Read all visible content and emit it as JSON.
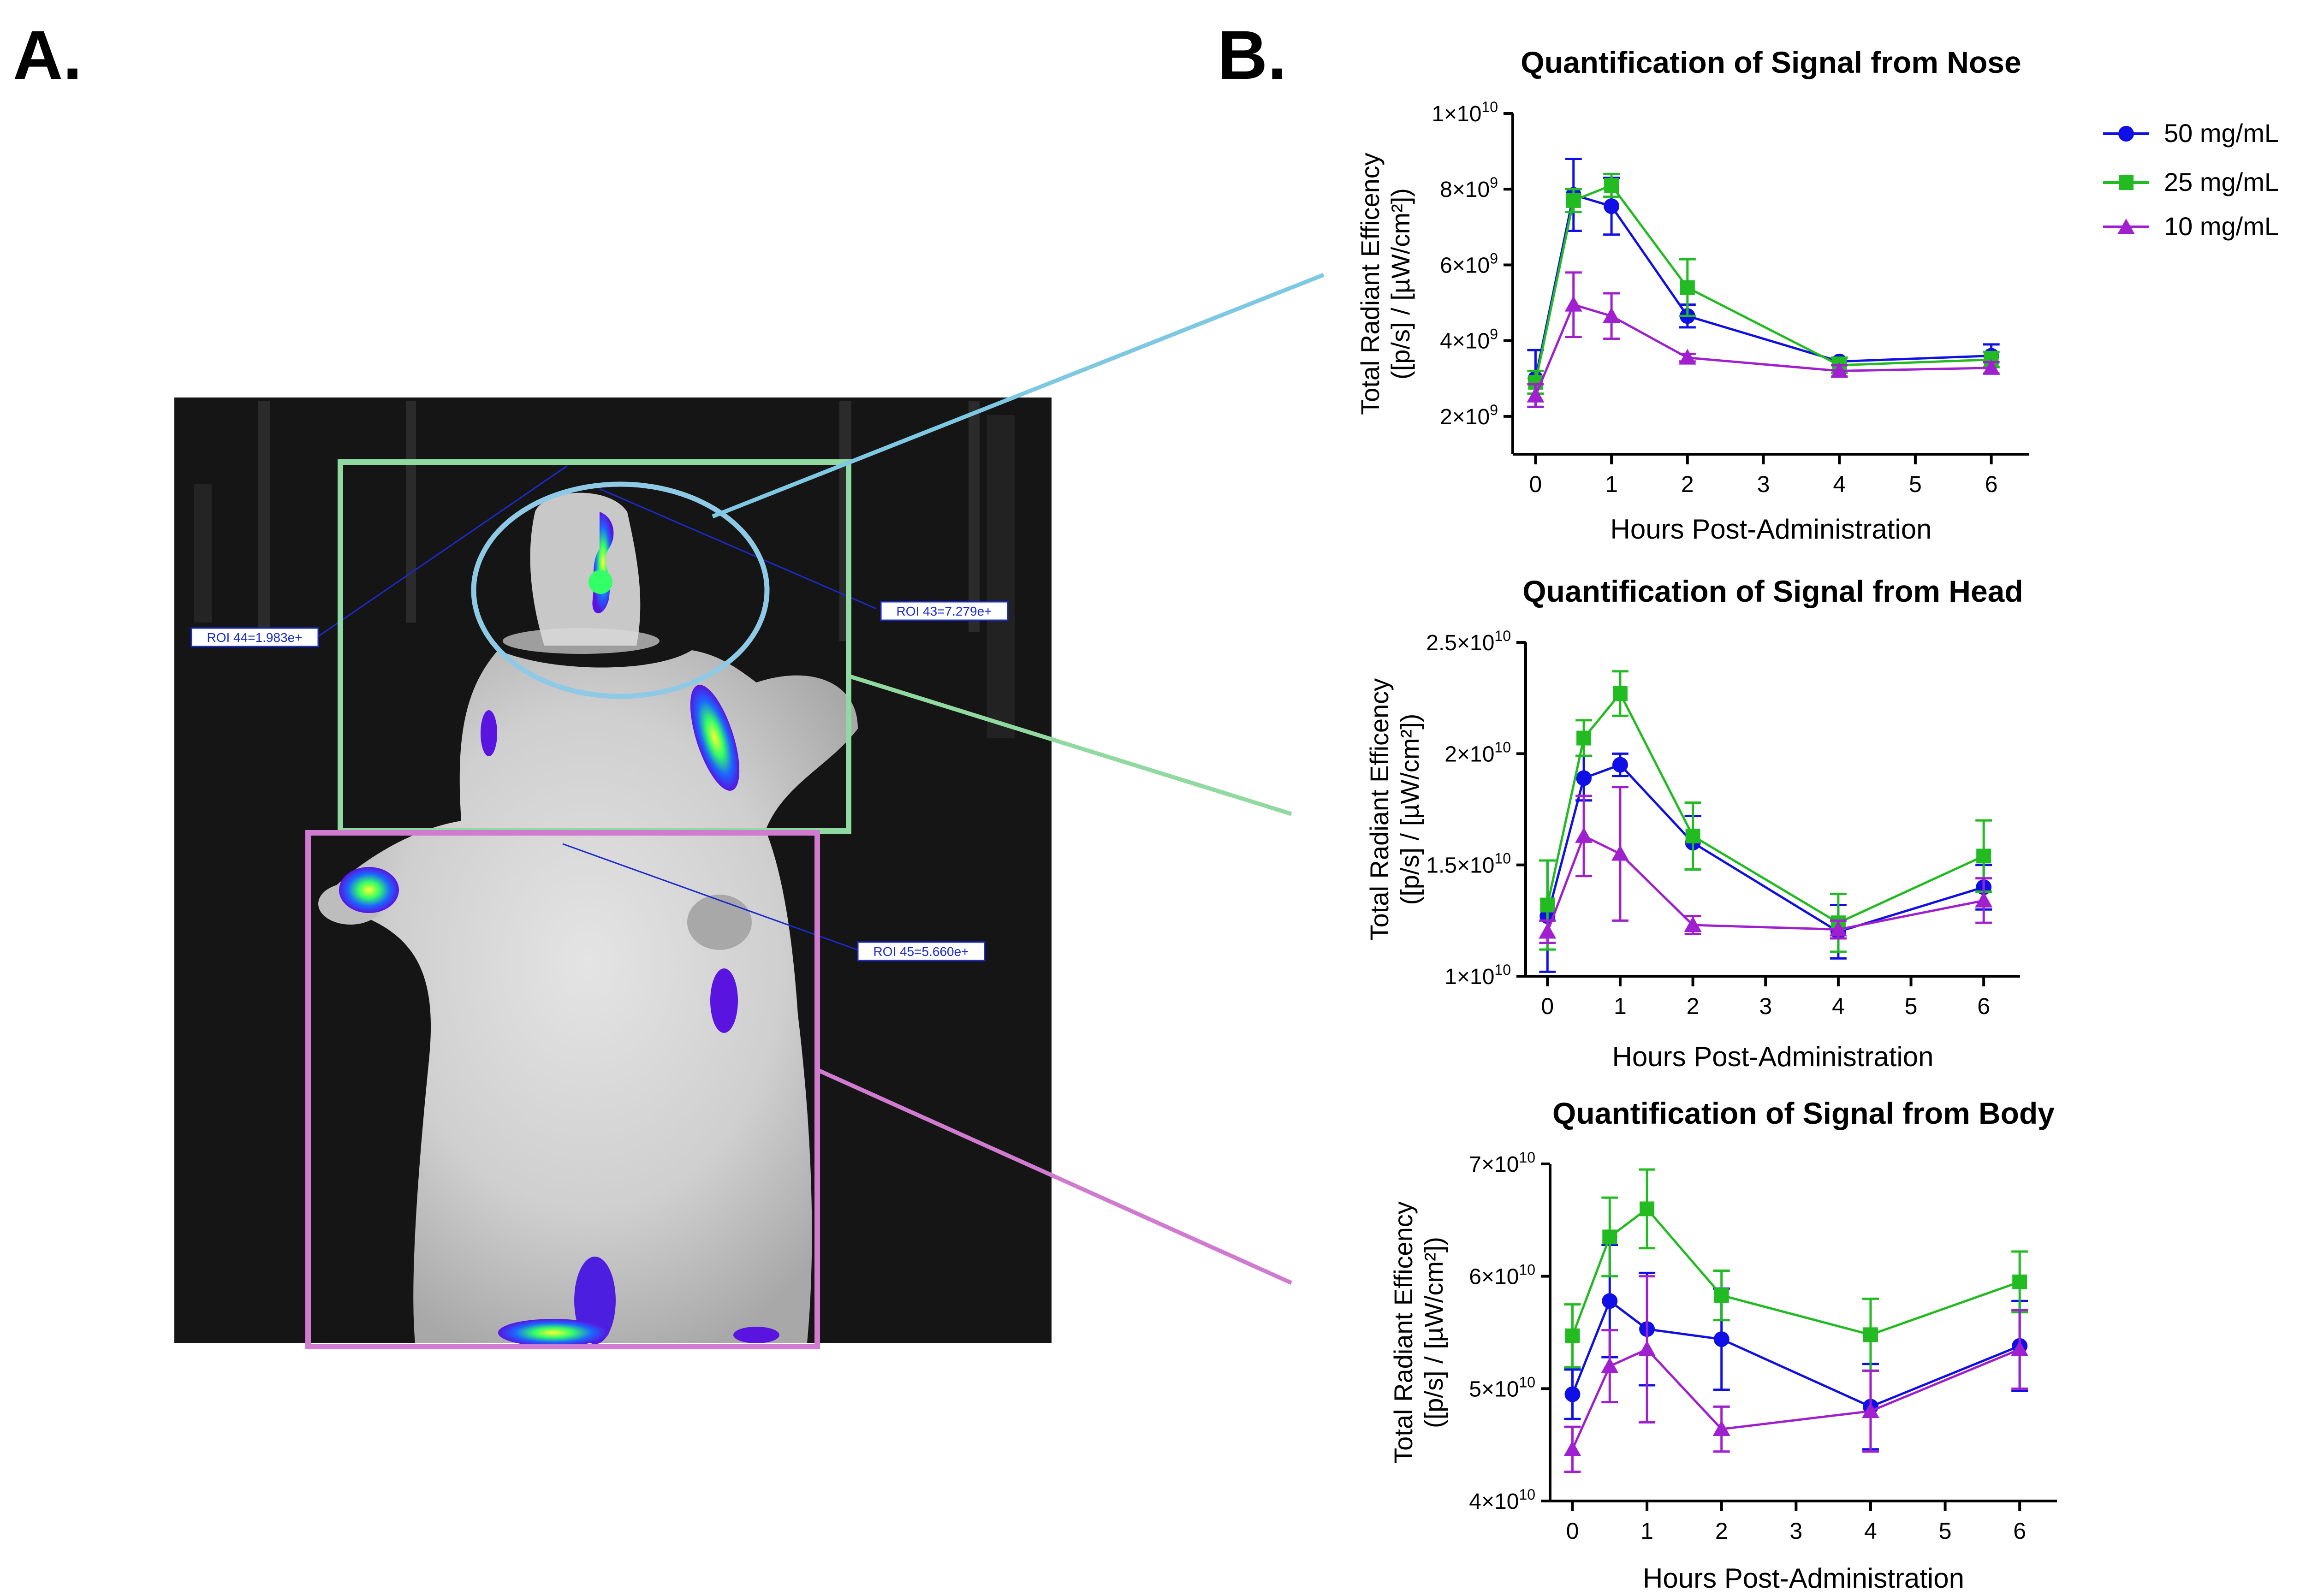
{
  "panels": {
    "a_label": "A.",
    "b_label": "B."
  },
  "image_panel": {
    "roi_labels": [
      "ROI 44=1.983e+",
      "ROI 43=7.279e+",
      "ROI 45=5.660e+"
    ],
    "colors": {
      "nose_roi": "#8ecae6",
      "head_roi": "#90d9a0",
      "body_roi": "#d07ad0",
      "link_line_nose": "#7ec8e3",
      "link_line_head": "#90d9a0",
      "link_line_body": "#d07ad0"
    }
  },
  "legend": [
    {
      "name": "50 mg/mL",
      "color": "#1010e6",
      "marker": "circle"
    },
    {
      "name": "25 mg/mL",
      "color": "#22bb22",
      "marker": "square"
    },
    {
      "name": "10 mg/mL",
      "color": "#a020d0",
      "marker": "triangle"
    }
  ],
  "chart_data": [
    {
      "type": "line",
      "title": "Quantification of Signal from Nose",
      "xlabel": "Hours Post-Administration",
      "ylabel": [
        "Total Radiant Efficency",
        "([p/s] / [µW/cm²])"
      ],
      "x": [
        0,
        0.5,
        1,
        2,
        4,
        6
      ],
      "xticks": [
        0,
        1,
        2,
        3,
        4,
        5,
        6
      ],
      "xlim": [
        -0.3,
        6.5
      ],
      "ylim": [
        1000000000.0,
        10000000000.0
      ],
      "yticks": [
        {
          "v": 2000000000.0,
          "base": "2×10",
          "exp": "9"
        },
        {
          "v": 4000000000.0,
          "base": "4×10",
          "exp": "9"
        },
        {
          "v": 6000000000.0,
          "base": "6×10",
          "exp": "9"
        },
        {
          "v": 8000000000.0,
          "base": "8×10",
          "exp": "9"
        },
        {
          "v": 10000000000.0,
          "base": "1×10",
          "exp": "10"
        }
      ],
      "series": [
        {
          "name": "50 mg/mL",
          "values": [
            3000000000.0,
            7850000000.0,
            7550000000.0,
            4650000000.0,
            3450000000.0,
            3600000000.0
          ],
          "errors": [
            750000000.0,
            950000000.0,
            750000000.0,
            300000000.0,
            100000000.0,
            300000000.0
          ]
        },
        {
          "name": "25 mg/mL",
          "values": [
            2900000000.0,
            7700000000.0,
            8100000000.0,
            5400000000.0,
            3350000000.0,
            3500000000.0
          ],
          "errors": [
            300000000.0,
            300000000.0,
            300000000.0,
            750000000.0,
            200000000.0,
            200000000.0
          ]
        },
        {
          "name": "10 mg/mL",
          "values": [
            2550000000.0,
            4950000000.0,
            4650000000.0,
            3550000000.0,
            3200000000.0,
            3280000000.0
          ],
          "errors": [
            300000000.0,
            850000000.0,
            600000000.0,
            100000000.0,
            150000000.0,
            150000000.0
          ]
        }
      ]
    },
    {
      "type": "line",
      "title": "Quantification of Signal from Head",
      "xlabel": "Hours Post-Administration",
      "ylabel": [
        "Total Radiant Efficency",
        "([p/s] / [µW/cm²])"
      ],
      "x": [
        0,
        0.5,
        1,
        2,
        4,
        6
      ],
      "xticks": [
        0,
        1,
        2,
        3,
        4,
        5,
        6
      ],
      "xlim": [
        -0.3,
        6.5
      ],
      "ylim": [
        10000000000.0,
        25000000000.0
      ],
      "yticks": [
        {
          "v": 10000000000.0,
          "base": "1×10",
          "exp": "10"
        },
        {
          "v": 15000000000.0,
          "base": "1.5×10",
          "exp": "10"
        },
        {
          "v": 20000000000.0,
          "base": "2×10",
          "exp": "10"
        },
        {
          "v": 25000000000.0,
          "base": "2.5×10",
          "exp": "10"
        }
      ],
      "series": [
        {
          "name": "50 mg/mL",
          "values": [
            12700000000.0,
            18900000000.0,
            19500000000.0,
            16000000000.0,
            12000000000.0,
            14000000000.0
          ],
          "errors": [
            2500000000.0,
            1000000000.0,
            500000000.0,
            1200000000.0,
            1200000000.0,
            1000000000.0
          ]
        },
        {
          "name": "25 mg/mL",
          "values": [
            13200000000.0,
            20700000000.0,
            22700000000.0,
            16300000000.0,
            12400000000.0,
            15400000000.0
          ],
          "errors": [
            2000000000.0,
            800000000.0,
            1000000000.0,
            1500000000.0,
            1300000000.0,
            1600000000.0
          ]
        },
        {
          "name": "10 mg/mL",
          "values": [
            12000000000.0,
            16300000000.0,
            15500000000.0,
            12300000000.0,
            12100000000.0,
            13400000000.0
          ],
          "errors": [
            500000000.0,
            1800000000.0,
            3000000000.0,
            400000000.0,
            400000000.0,
            1000000000.0
          ]
        }
      ]
    },
    {
      "type": "line",
      "title": "Quantification of Signal from Body",
      "xlabel": "Hours Post-Administration",
      "ylabel": [
        "Total Radiant Efficency",
        "([p/s] / [µW/cm²])"
      ],
      "x": [
        0,
        0.5,
        1,
        2,
        4,
        6
      ],
      "xticks": [
        0,
        1,
        2,
        3,
        4,
        5,
        6
      ],
      "xlim": [
        -0.3,
        6.5
      ],
      "ylim": [
        40000000000.0,
        70000000000.0
      ],
      "yticks": [
        {
          "v": 40000000000.0,
          "base": "4×10",
          "exp": "10"
        },
        {
          "v": 50000000000.0,
          "base": "5×10",
          "exp": "10"
        },
        {
          "v": 60000000000.0,
          "base": "6×10",
          "exp": "10"
        },
        {
          "v": 70000000000.0,
          "base": "7×10",
          "exp": "10"
        }
      ],
      "series": [
        {
          "name": "50 mg/mL",
          "values": [
            49500000000.0,
            57800000000.0,
            55300000000.0,
            54400000000.0,
            48400000000.0,
            53800000000.0
          ],
          "errors": [
            2200000000.0,
            5000000000.0,
            5000000000.0,
            4500000000.0,
            3800000000.0,
            4000000000.0
          ]
        },
        {
          "name": "25 mg/mL",
          "values": [
            54700000000.0,
            63500000000.0,
            66000000000.0,
            58300000000.0,
            54800000000.0,
            59500000000.0
          ],
          "errors": [
            2800000000.0,
            3500000000.0,
            3500000000.0,
            2200000000.0,
            3200000000.0,
            2700000000.0
          ]
        },
        {
          "name": "10 mg/mL",
          "values": [
            44600000000.0,
            52000000000.0,
            53500000000.0,
            46400000000.0,
            48000000000.0,
            53500000000.0
          ],
          "errors": [
            2000000000.0,
            3200000000.0,
            6500000000.0,
            2000000000.0,
            3600000000.0,
            3500000000.0
          ]
        }
      ]
    }
  ]
}
